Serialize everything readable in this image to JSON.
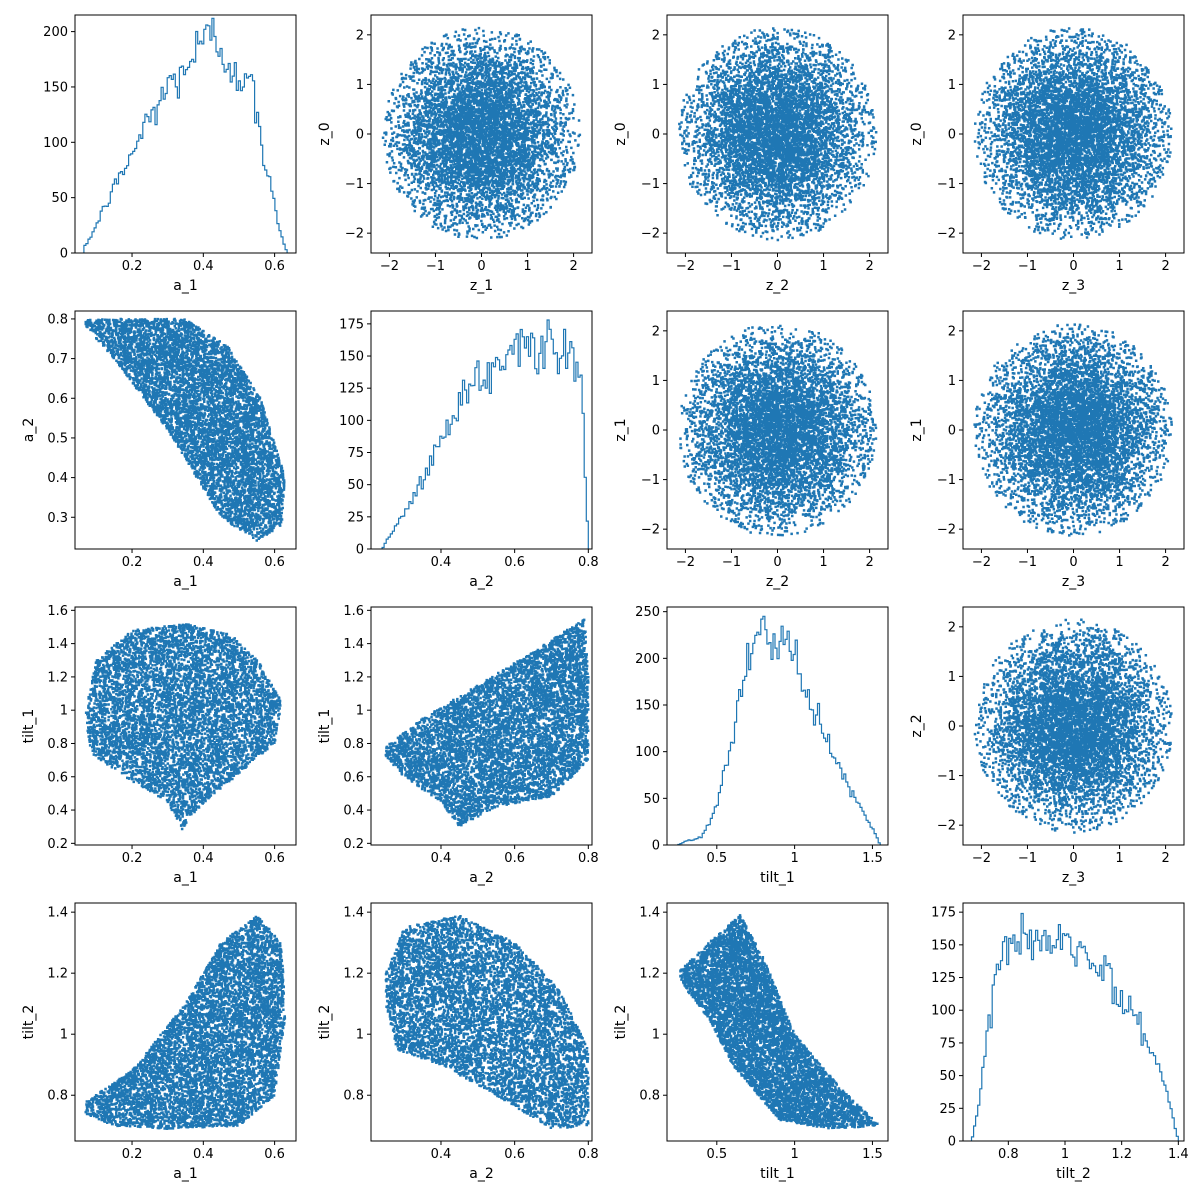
{
  "colors": {
    "series": "#1f77b4",
    "axis": "#000000",
    "background": "#ffffff"
  },
  "chart_data": [
    {
      "type": "histogram",
      "row": 0,
      "col": 0,
      "xlabel": "a_1",
      "ylabel": "",
      "xlim": [
        0.04,
        0.66
      ],
      "ylim": [
        0,
        215
      ],
      "xticks": [
        0.2,
        0.4,
        0.6
      ],
      "yticks": [
        0,
        50,
        100,
        150,
        200
      ],
      "range": [
        0.065,
        0.635
      ],
      "profile": [
        [
          0.065,
          4
        ],
        [
          0.09,
          18
        ],
        [
          0.13,
          45
        ],
        [
          0.18,
          75
        ],
        [
          0.25,
          120
        ],
        [
          0.3,
          145
        ],
        [
          0.35,
          165
        ],
        [
          0.4,
          185
        ],
        [
          0.43,
          190
        ],
        [
          0.46,
          175
        ],
        [
          0.5,
          160
        ],
        [
          0.54,
          140
        ],
        [
          0.56,
          100
        ],
        [
          0.59,
          55
        ],
        [
          0.62,
          15
        ],
        [
          0.635,
          0
        ]
      ],
      "peak": 212
    },
    {
      "type": "scatter",
      "row": 0,
      "col": 1,
      "xlabel": "z_1",
      "ylabel": "z_0",
      "xlim": [
        -2.4,
        2.4
      ],
      "ylim": [
        -2.4,
        2.4
      ],
      "xticks": [
        -2,
        -1,
        0,
        1,
        2
      ],
      "yticks": [
        -2,
        -1,
        0,
        1,
        2
      ],
      "shape": "disk",
      "radius": 2.15
    },
    {
      "type": "scatter",
      "row": 0,
      "col": 2,
      "xlabel": "z_2",
      "ylabel": "z_0",
      "xlim": [
        -2.4,
        2.4
      ],
      "ylim": [
        -2.4,
        2.4
      ],
      "xticks": [
        -2,
        -1,
        0,
        1,
        2
      ],
      "yticks": [
        -2,
        -1,
        0,
        1,
        2
      ],
      "shape": "disk",
      "radius": 2.15
    },
    {
      "type": "scatter",
      "row": 0,
      "col": 3,
      "xlabel": "z_3",
      "ylabel": "z_0",
      "xlim": [
        -2.4,
        2.4
      ],
      "ylim": [
        -2.4,
        2.4
      ],
      "xticks": [
        -2,
        -1,
        0,
        1,
        2
      ],
      "yticks": [
        -2,
        -1,
        0,
        1,
        2
      ],
      "shape": "disk",
      "radius": 2.15
    },
    {
      "type": "scatter",
      "row": 1,
      "col": 0,
      "xlabel": "a_1",
      "ylabel": "a_2",
      "xlim": [
        0.04,
        0.66
      ],
      "ylim": [
        0.22,
        0.82
      ],
      "xticks": [
        0.2,
        0.4,
        0.6
      ],
      "yticks": [
        0.3,
        0.4,
        0.5,
        0.6,
        0.7,
        0.8
      ],
      "shape": "polygon",
      "polygon": [
        [
          0.07,
          0.8
        ],
        [
          0.35,
          0.8
        ],
        [
          0.47,
          0.73
        ],
        [
          0.56,
          0.6
        ],
        [
          0.63,
          0.4
        ],
        [
          0.62,
          0.28
        ],
        [
          0.55,
          0.24
        ],
        [
          0.45,
          0.3
        ],
        [
          0.3,
          0.52
        ],
        [
          0.15,
          0.7
        ],
        [
          0.07,
          0.78
        ]
      ]
    },
    {
      "type": "histogram",
      "row": 1,
      "col": 1,
      "xlabel": "a_2",
      "ylabel": "",
      "xlim": [
        0.21,
        0.81
      ],
      "ylim": [
        0,
        185
      ],
      "xticks": [
        0.4,
        0.6,
        0.8
      ],
      "yticks": [
        0,
        25,
        50,
        75,
        100,
        125,
        150,
        175
      ],
      "range": [
        0.24,
        0.8
      ],
      "profile": [
        [
          0.24,
          0
        ],
        [
          0.25,
          5
        ],
        [
          0.3,
          30
        ],
        [
          0.35,
          55
        ],
        [
          0.4,
          85
        ],
        [
          0.45,
          115
        ],
        [
          0.5,
          135
        ],
        [
          0.55,
          148
        ],
        [
          0.6,
          158
        ],
        [
          0.65,
          162
        ],
        [
          0.7,
          160
        ],
        [
          0.75,
          155
        ],
        [
          0.78,
          140
        ],
        [
          0.795,
          45
        ],
        [
          0.8,
          0
        ]
      ],
      "peak": 178
    },
    {
      "type": "scatter",
      "row": 1,
      "col": 2,
      "xlabel": "z_2",
      "ylabel": "z_1",
      "xlim": [
        -2.4,
        2.4
      ],
      "ylim": [
        -2.4,
        2.4
      ],
      "xticks": [
        -2,
        -1,
        0,
        1,
        2
      ],
      "yticks": [
        -2,
        -1,
        0,
        1,
        2
      ],
      "shape": "disk",
      "radius": 2.15
    },
    {
      "type": "scatter",
      "row": 1,
      "col": 3,
      "xlabel": "z_3",
      "ylabel": "z_1",
      "xlim": [
        -2.4,
        2.4
      ],
      "ylim": [
        -2.4,
        2.4
      ],
      "xticks": [
        -2,
        -1,
        0,
        1,
        2
      ],
      "yticks": [
        -2,
        -1,
        0,
        1,
        2
      ],
      "shape": "disk",
      "radius": 2.15
    },
    {
      "type": "scatter",
      "row": 2,
      "col": 0,
      "xlabel": "a_1",
      "ylabel": "tilt_1",
      "xlim": [
        0.04,
        0.66
      ],
      "ylim": [
        0.19,
        1.62
      ],
      "xticks": [
        0.2,
        0.4,
        0.6
      ],
      "yticks": [
        0.2,
        0.4,
        0.6,
        0.8,
        1.0,
        1.2,
        1.4,
        1.6
      ],
      "shape": "polygon",
      "polygon": [
        [
          0.07,
          1.0
        ],
        [
          0.1,
          1.3
        ],
        [
          0.2,
          1.48
        ],
        [
          0.35,
          1.52
        ],
        [
          0.48,
          1.45
        ],
        [
          0.56,
          1.28
        ],
        [
          0.62,
          1.05
        ],
        [
          0.6,
          0.8
        ],
        [
          0.5,
          0.62
        ],
        [
          0.38,
          0.4
        ],
        [
          0.34,
          0.28
        ],
        [
          0.3,
          0.45
        ],
        [
          0.18,
          0.6
        ],
        [
          0.08,
          0.75
        ]
      ]
    },
    {
      "type": "scatter",
      "row": 2,
      "col": 1,
      "xlabel": "a_2",
      "ylabel": "tilt_1",
      "xlim": [
        0.21,
        0.81
      ],
      "ylim": [
        0.19,
        1.62
      ],
      "xticks": [
        0.4,
        0.6,
        0.8
      ],
      "yticks": [
        0.2,
        0.4,
        0.6,
        0.8,
        1.0,
        1.2,
        1.4,
        1.6
      ],
      "shape": "polygon",
      "polygon": [
        [
          0.25,
          0.78
        ],
        [
          0.35,
          0.95
        ],
        [
          0.5,
          1.15
        ],
        [
          0.65,
          1.35
        ],
        [
          0.79,
          1.55
        ],
        [
          0.8,
          1.2
        ],
        [
          0.8,
          0.7
        ],
        [
          0.7,
          0.48
        ],
        [
          0.55,
          0.42
        ],
        [
          0.45,
          0.3
        ],
        [
          0.4,
          0.45
        ],
        [
          0.3,
          0.6
        ],
        [
          0.25,
          0.72
        ]
      ]
    },
    {
      "type": "histogram",
      "row": 2,
      "col": 2,
      "xlabel": "tilt_1",
      "ylabel": "",
      "xlim": [
        0.18,
        1.6
      ],
      "ylim": [
        0,
        255
      ],
      "xticks": [
        0.5,
        1.0,
        1.5
      ],
      "yticks": [
        0,
        50,
        100,
        150,
        200,
        250
      ],
      "range": [
        0.25,
        1.55
      ],
      "profile": [
        [
          0.25,
          0
        ],
        [
          0.3,
          4
        ],
        [
          0.4,
          8
        ],
        [
          0.5,
          40
        ],
        [
          0.6,
          120
        ],
        [
          0.7,
          200
        ],
        [
          0.8,
          232
        ],
        [
          0.9,
          225
        ],
        [
          1.0,
          200
        ],
        [
          1.1,
          150
        ],
        [
          1.2,
          110
        ],
        [
          1.3,
          75
        ],
        [
          1.4,
          45
        ],
        [
          1.5,
          18
        ],
        [
          1.55,
          0
        ]
      ],
      "peak": 245
    },
    {
      "type": "scatter",
      "row": 2,
      "col": 3,
      "xlabel": "z_3",
      "ylabel": "z_2",
      "xlim": [
        -2.4,
        2.4
      ],
      "ylim": [
        -2.4,
        2.4
      ],
      "xticks": [
        -2,
        -1,
        0,
        1,
        2
      ],
      "yticks": [
        -2,
        -1,
        0,
        1,
        2
      ],
      "shape": "disk",
      "radius": 2.15
    },
    {
      "type": "scatter",
      "row": 3,
      "col": 0,
      "xlabel": "a_1",
      "ylabel": "tilt_2",
      "xlim": [
        0.04,
        0.66
      ],
      "ylim": [
        0.65,
        1.43
      ],
      "xticks": [
        0.2,
        0.4,
        0.6
      ],
      "yticks": [
        0.8,
        1.0,
        1.2,
        1.4
      ],
      "shape": "polygon",
      "polygon": [
        [
          0.07,
          0.78
        ],
        [
          0.2,
          0.88
        ],
        [
          0.35,
          1.1
        ],
        [
          0.45,
          1.3
        ],
        [
          0.55,
          1.39
        ],
        [
          0.62,
          1.3
        ],
        [
          0.63,
          1.05
        ],
        [
          0.6,
          0.8
        ],
        [
          0.5,
          0.7
        ],
        [
          0.3,
          0.69
        ],
        [
          0.15,
          0.7
        ],
        [
          0.07,
          0.74
        ]
      ]
    },
    {
      "type": "scatter",
      "row": 3,
      "col": 1,
      "xlabel": "a_2",
      "ylabel": "tilt_2",
      "xlim": [
        0.21,
        0.81
      ],
      "ylim": [
        0.65,
        1.43
      ],
      "xticks": [
        0.4,
        0.6,
        0.8
      ],
      "yticks": [
        0.8,
        1.0,
        1.2,
        1.4
      ],
      "shape": "polygon",
      "polygon": [
        [
          0.25,
          1.2
        ],
        [
          0.3,
          1.35
        ],
        [
          0.45,
          1.39
        ],
        [
          0.6,
          1.3
        ],
        [
          0.72,
          1.15
        ],
        [
          0.8,
          0.95
        ],
        [
          0.8,
          0.7
        ],
        [
          0.7,
          0.69
        ],
        [
          0.55,
          0.8
        ],
        [
          0.4,
          0.9
        ],
        [
          0.28,
          0.95
        ],
        [
          0.25,
          1.1
        ]
      ]
    },
    {
      "type": "scatter",
      "row": 3,
      "col": 2,
      "xlabel": "tilt_1",
      "ylabel": "tilt_2",
      "xlim": [
        0.18,
        1.6
      ],
      "ylim": [
        0.65,
        1.43
      ],
      "xticks": [
        0.5,
        1.0,
        1.5
      ],
      "yticks": [
        0.8,
        1.0,
        1.2,
        1.4
      ],
      "shape": "polygon",
      "polygon": [
        [
          0.25,
          1.2
        ],
        [
          0.45,
          1.3
        ],
        [
          0.65,
          1.39
        ],
        [
          0.8,
          1.25
        ],
        [
          1.0,
          1.0
        ],
        [
          1.3,
          0.82
        ],
        [
          1.55,
          0.7
        ],
        [
          1.2,
          0.69
        ],
        [
          0.9,
          0.72
        ],
        [
          0.6,
          0.9
        ],
        [
          0.45,
          1.05
        ],
        [
          0.3,
          1.15
        ]
      ]
    },
    {
      "type": "histogram",
      "row": 3,
      "col": 3,
      "xlabel": "tilt_2",
      "ylabel": "",
      "xlim": [
        0.64,
        1.42
      ],
      "ylim": [
        0,
        182
      ],
      "xticks": [
        0.8,
        1.0,
        1.2,
        1.4
      ],
      "yticks": [
        0,
        25,
        50,
        75,
        100,
        125,
        150,
        175
      ],
      "range": [
        0.67,
        1.4
      ],
      "profile": [
        [
          0.67,
          0
        ],
        [
          0.69,
          20
        ],
        [
          0.72,
          75
        ],
        [
          0.76,
          140
        ],
        [
          0.8,
          150
        ],
        [
          0.85,
          152
        ],
        [
          0.9,
          155
        ],
        [
          0.95,
          155
        ],
        [
          1.0,
          150
        ],
        [
          1.05,
          145
        ],
        [
          1.1,
          135
        ],
        [
          1.15,
          130
        ],
        [
          1.2,
          115
        ],
        [
          1.25,
          95
        ],
        [
          1.3,
          70
        ],
        [
          1.35,
          45
        ],
        [
          1.38,
          20
        ],
        [
          1.4,
          0
        ]
      ],
      "peak": 174
    }
  ]
}
